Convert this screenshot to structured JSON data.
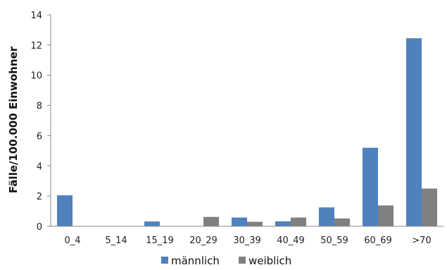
{
  "chart_data": {
    "type": "bar",
    "categories": [
      "0_4",
      "5_14",
      "15_19",
      "20_29",
      "30_39",
      "40_49",
      "50_59",
      "60_69",
      ">70"
    ],
    "series": [
      {
        "name": "männlich",
        "color": "#4f81bd",
        "values": [
          2.05,
          0,
          0.32,
          0,
          0.58,
          0.33,
          1.25,
          5.2,
          12.45
        ]
      },
      {
        "name": "weiblich",
        "color": "#808080",
        "values": [
          0,
          0,
          0,
          0.62,
          0.3,
          0.58,
          0.52,
          1.38,
          2.5
        ]
      }
    ],
    "title": "",
    "xlabel": "",
    "ylabel": "Fälle/100.000 Einwohner",
    "ylim": [
      0,
      14
    ],
    "yticks": [
      0,
      2,
      4,
      6,
      8,
      10,
      12,
      14
    ],
    "grid": false,
    "legend_position": "bottom"
  }
}
